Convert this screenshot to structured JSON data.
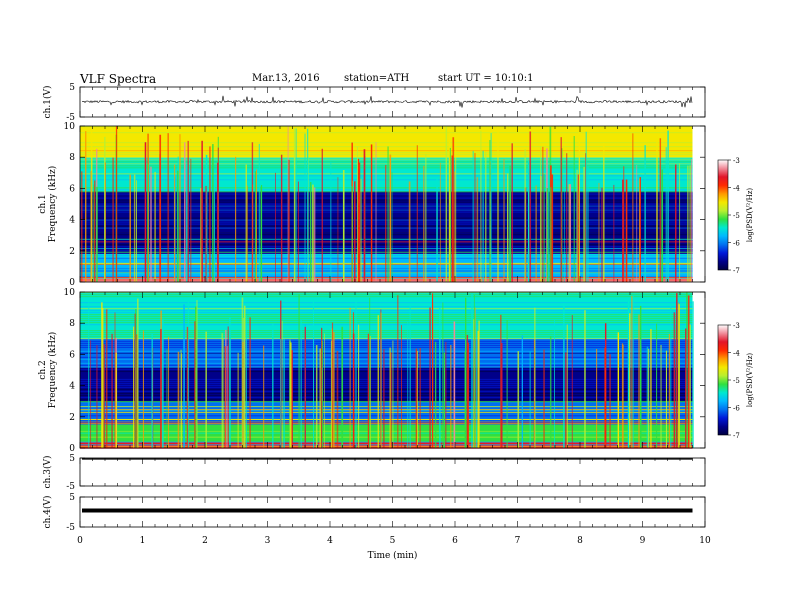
{
  "header": {
    "title": "VLF  Spectra",
    "date": "Mar.13, 2016",
    "station": "station=ATH",
    "start": "start  UT =   10:10:1"
  },
  "colors": {
    "colormap": [
      "#000040",
      "#00008a",
      "#0018d8",
      "#0070f0",
      "#00b8ff",
      "#00e8d0",
      "#30e040",
      "#b8ef30",
      "#f4e800",
      "#ff9a00",
      "#ff2a00",
      "#e2162a",
      "#f08a98",
      "#ffffff"
    ],
    "trace": "#000000",
    "axis": "#000000"
  },
  "chart_data": [
    {
      "type": "line",
      "name": "ch1-waveform",
      "ylabel": "ch.1(V)",
      "ylim": [
        -5,
        5
      ],
      "yticks": [
        "5",
        "-5"
      ],
      "xlim": [
        0,
        10
      ],
      "series": [
        {
          "values_summary": "noise around approximately 0 V with spikes reaching about ±2 V",
          "baseline": 0.1,
          "spike_amplitude": 2
        }
      ]
    },
    {
      "type": "heatmap",
      "name": "ch1-spectrogram",
      "ylabel": "ch.1\nFrequency (kHz)",
      "ylim": [
        0,
        10
      ],
      "yticks": [
        "0",
        "2",
        "4",
        "6",
        "8",
        "10"
      ],
      "xlim": [
        0,
        9.8
      ],
      "colorbar": {
        "label": "log(PSD(V²/Hz)",
        "range": [
          -7,
          -3
        ],
        "ticks": [
          "-3",
          "-4",
          "-5",
          "-6",
          "-7"
        ]
      },
      "bands": [
        {
          "freq": [
            0,
            0.3
          ],
          "level": -3.2
        },
        {
          "freq": [
            0.3,
            1.8
          ],
          "level": -5.6
        },
        {
          "freq": [
            1.8,
            3.2
          ],
          "level": -6.6
        },
        {
          "freq": [
            3.2,
            5.8
          ],
          "level": -6.4
        },
        {
          "freq": [
            5.8,
            8.0
          ],
          "level": -5.2
        },
        {
          "freq": [
            8.0,
            10.0
          ],
          "level": -4.4
        }
      ]
    },
    {
      "type": "heatmap",
      "name": "ch2-spectrogram",
      "ylabel": "ch.2\nFrequency (kHz)",
      "ylim": [
        0,
        10
      ],
      "yticks": [
        "0",
        "2",
        "4",
        "6",
        "8",
        "10"
      ],
      "xlim": [
        0,
        9.8
      ],
      "colorbar": {
        "label": "log(PSD(V²/Hz)",
        "range": [
          -7,
          -3
        ],
        "ticks": [
          "-3",
          "-4",
          "-5",
          "-6",
          "-7"
        ]
      },
      "bands": [
        {
          "freq": [
            0,
            0.4
          ],
          "level": -3.5
        },
        {
          "freq": [
            0.4,
            1.5
          ],
          "level": -5.0
        },
        {
          "freq": [
            1.5,
            3.0
          ],
          "level": -5.8
        },
        {
          "freq": [
            3.0,
            5.2
          ],
          "level": -6.6
        },
        {
          "freq": [
            5.2,
            7.0
          ],
          "level": -6.0
        },
        {
          "freq": [
            7.0,
            10.0
          ],
          "level": -5.2
        }
      ]
    },
    {
      "type": "line",
      "name": "ch3-waveform",
      "ylabel": "ch.3(V)",
      "ylim": [
        -5,
        5
      ],
      "yticks": [
        "5",
        "-5"
      ],
      "xlim": [
        0,
        10
      ],
      "series": [
        {
          "values_summary": "flat near +5 V",
          "baseline": 5
        }
      ]
    },
    {
      "type": "line",
      "name": "ch4-waveform",
      "ylabel": "ch.4(V)",
      "ylim": [
        -5,
        5
      ],
      "yticks": [
        "5",
        "-5"
      ],
      "xlim": [
        0,
        10
      ],
      "xlabel": "Time  (min)",
      "xticks": [
        "0",
        "1",
        "2",
        "3",
        "4",
        "5",
        "6",
        "7",
        "8",
        "9",
        "10"
      ],
      "series": [
        {
          "values_summary": "flat thick line near +0.5 V",
          "baseline": 0.5
        }
      ]
    }
  ]
}
